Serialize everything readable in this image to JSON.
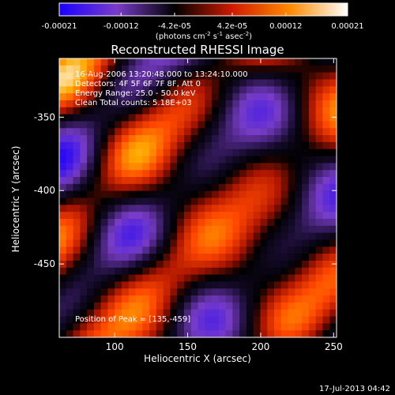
{
  "colorbar": {
    "ticks": [
      "-0.00021",
      "-0.00012",
      "-4.2e-05",
      "4.2e-05",
      "0.00012",
      "0.00021"
    ],
    "tick_values": [
      -0.00021,
      -0.00012,
      -4.2e-05,
      4.2e-05,
      0.00012,
      0.00021
    ],
    "range": [
      -0.00021,
      0.00021
    ],
    "units_prefix": "(photons cm",
    "units_exp1": "-2",
    "units_mid": " s",
    "units_exp2": "-1",
    "units_mid2": " asec",
    "units_exp3": "-2",
    "units_suffix": ")",
    "colors": [
      "#1a00ff",
      "#7a3cc8",
      "#000000",
      "#cf1a00",
      "#ff8a00",
      "#ffffff"
    ]
  },
  "chart_data": {
    "type": "heatmap",
    "title": "Reconstructed RHESSI Image",
    "xlabel": "Heliocentric X (arcsec)",
    "ylabel": "Heliocentric Y (arcsec)",
    "xlim": [
      62,
      252
    ],
    "ylim": [
      -500,
      -310
    ],
    "xticks": [
      100,
      150,
      200,
      250
    ],
    "yticks": [
      -350,
      -400,
      -450
    ],
    "peak": [
      135,
      -459
    ],
    "annotations": [
      "16-Aug-2006 13:20:48.000 to 13:24:10.000",
      "Detectors: 4F 5F 6F 7F 8F, Att 0",
      "Energy Range: 25.0 - 50.0 keV",
      "Clean     Total counts: 5.18E+03",
      "Position of Peak = [135,-459]"
    ]
  },
  "footer": {
    "timestamp": "17-Jul-2013 04:42"
  }
}
